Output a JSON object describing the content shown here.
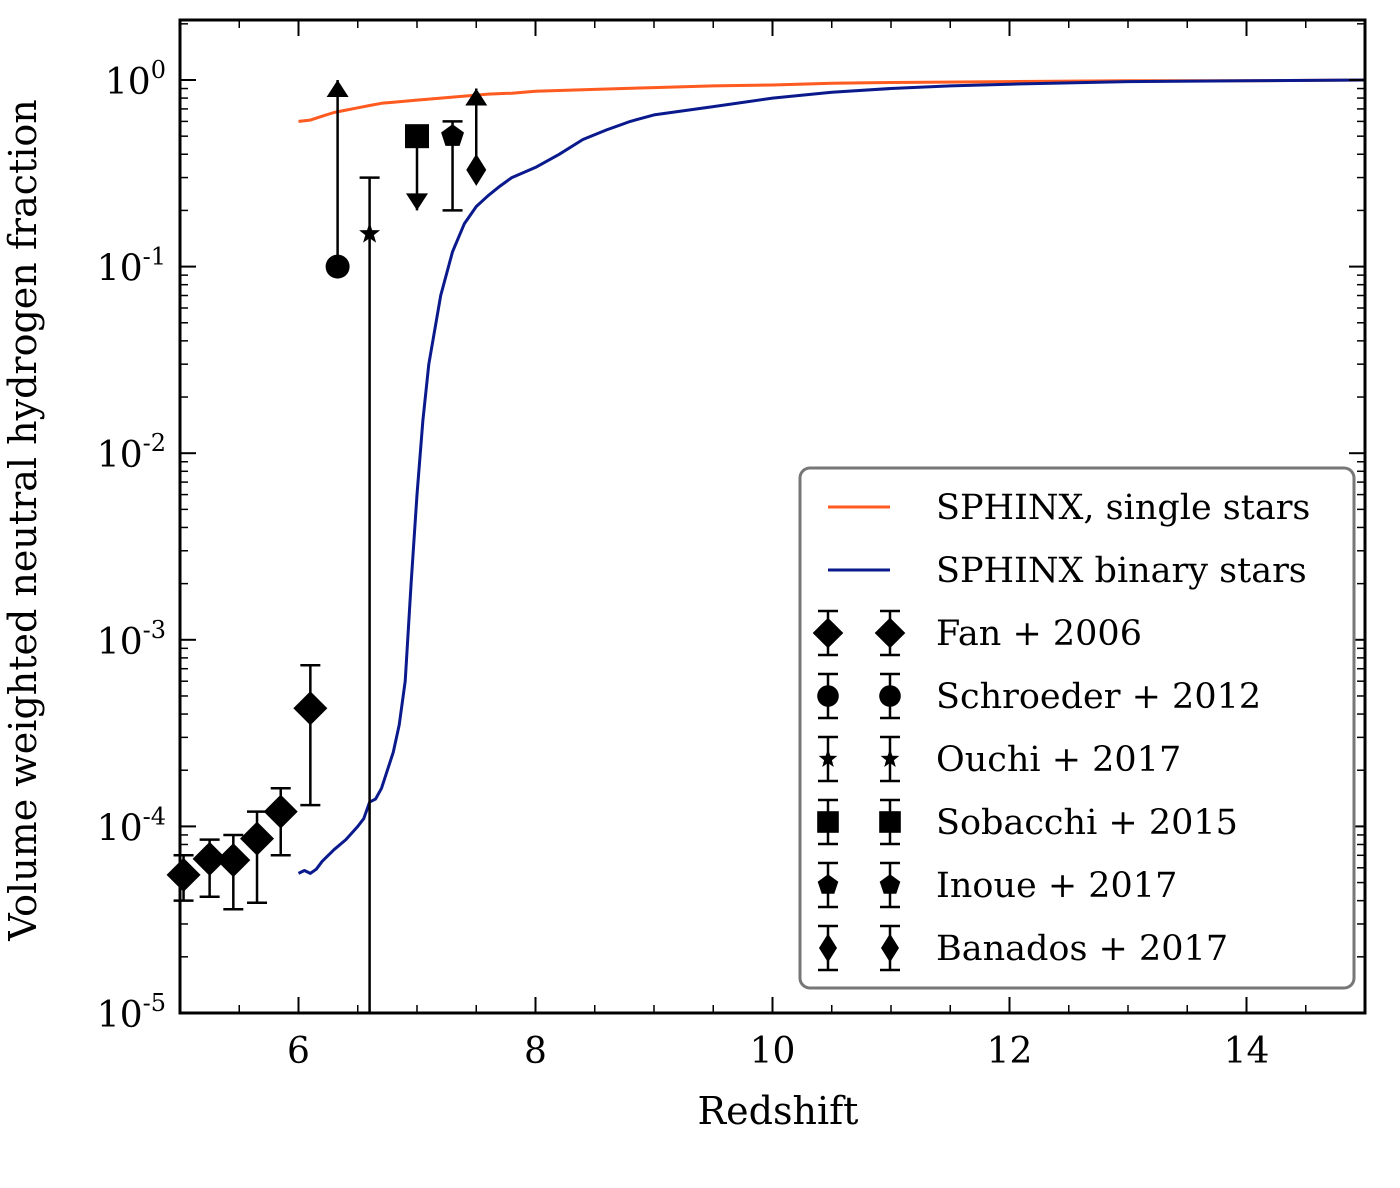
{
  "chart_data": {
    "type": "line",
    "title": "",
    "xlabel": "Redshift",
    "ylabel": "Volume weighted neutral hydrogen fraction",
    "xlim": [
      5,
      15
    ],
    "ylim": [
      1e-05,
      2
    ],
    "y_scale": "log",
    "grid": false,
    "legend_position": "lower-right",
    "x_ticks": [
      6,
      8,
      10,
      12,
      14
    ],
    "x_tick_labels": [
      "6",
      "8",
      "10",
      "12",
      "14"
    ],
    "y_ticks": [
      1e-05,
      0.0001,
      0.001,
      0.01,
      0.1,
      1
    ],
    "y_tick_labels": [
      {
        "base": "10",
        "exp": "-5"
      },
      {
        "base": "10",
        "exp": "-4"
      },
      {
        "base": "10",
        "exp": "-3"
      },
      {
        "base": "10",
        "exp": "-2"
      },
      {
        "base": "10",
        "exp": "-1"
      },
      {
        "base": "10",
        "exp": "0"
      }
    ],
    "series": [
      {
        "name": "SPHINX, single stars",
        "color": "#ff5a1f",
        "x": [
          6.0,
          6.1,
          6.2,
          6.3,
          6.4,
          6.5,
          6.6,
          6.7,
          6.8,
          7.0,
          7.2,
          7.4,
          7.6,
          7.8,
          8.0,
          8.5,
          9.0,
          9.5,
          10.0,
          10.5,
          11.0,
          12.0,
          13.0,
          14.0,
          15.0
        ],
        "y": [
          0.6,
          0.61,
          0.64,
          0.67,
          0.69,
          0.71,
          0.73,
          0.75,
          0.76,
          0.78,
          0.8,
          0.82,
          0.84,
          0.85,
          0.87,
          0.89,
          0.91,
          0.93,
          0.94,
          0.96,
          0.97,
          0.98,
          0.99,
          0.99,
          1.0
        ]
      },
      {
        "name": "SPHINX binary stars",
        "color": "#0a1a8c",
        "x": [
          6.0,
          6.05,
          6.1,
          6.15,
          6.2,
          6.3,
          6.4,
          6.5,
          6.55,
          6.6,
          6.65,
          6.7,
          6.75,
          6.8,
          6.85,
          6.9,
          6.95,
          7.0,
          7.05,
          7.1,
          7.2,
          7.3,
          7.4,
          7.5,
          7.6,
          7.7,
          7.8,
          8.0,
          8.2,
          8.4,
          8.6,
          8.8,
          9.0,
          9.5,
          10.0,
          10.5,
          11.0,
          11.5,
          12.0,
          13.0,
          14.0,
          15.0
        ],
        "y": [
          5.6e-05,
          5.8e-05,
          5.6e-05,
          5.9e-05,
          6.5e-05,
          7.5e-05,
          8.5e-05,
          0.0001,
          0.00011,
          0.000135,
          0.00014,
          0.00016,
          0.0002,
          0.00025,
          0.00035,
          0.0006,
          0.002,
          0.006,
          0.015,
          0.03,
          0.07,
          0.12,
          0.17,
          0.21,
          0.24,
          0.27,
          0.3,
          0.34,
          0.4,
          0.48,
          0.54,
          0.6,
          0.65,
          0.72,
          0.8,
          0.86,
          0.9,
          0.93,
          0.95,
          0.98,
          0.99,
          1.0
        ]
      }
    ],
    "observations": [
      {
        "name": "Fan + 2006",
        "marker": "diamond",
        "points": [
          {
            "x": 5.03,
            "y": 5.5e-05,
            "ylo": 4e-05,
            "yhi": 7e-05
          },
          {
            "x": 5.25,
            "y": 6.7e-05,
            "ylo": 4.2e-05,
            "yhi": 8.5e-05
          },
          {
            "x": 5.45,
            "y": 6.6e-05,
            "ylo": 3.6e-05,
            "yhi": 9e-05
          },
          {
            "x": 5.65,
            "y": 8.6e-05,
            "ylo": 3.9e-05,
            "yhi": 0.00012
          },
          {
            "x": 5.85,
            "y": 0.00012,
            "ylo": 7e-05,
            "yhi": 0.00016
          },
          {
            "x": 6.1,
            "y": 0.00043,
            "ylo": 0.00013,
            "yhi": 0.00073
          }
        ]
      },
      {
        "name": "Schroeder + 2012",
        "marker": "circle",
        "points": [
          {
            "x": 6.33,
            "y": 0.1,
            "ylo": 0.1,
            "yhi": 1.0,
            "lower_limit": true
          }
        ]
      },
      {
        "name": "Ouchi + 2017",
        "marker": "star",
        "points": [
          {
            "x": 6.6,
            "y": 0.15,
            "ylo": 1e-05,
            "yhi": 0.3
          }
        ]
      },
      {
        "name": "Sobacchi + 2015",
        "marker": "square",
        "points": [
          {
            "x": 7.0,
            "y": 0.5,
            "ylo": 0.2,
            "yhi": 0.5,
            "upper_limit": true
          }
        ]
      },
      {
        "name": "Inoue + 2017",
        "marker": "pentagon",
        "points": [
          {
            "x": 7.3,
            "y": 0.5,
            "ylo": 0.2,
            "yhi": 0.6
          }
        ]
      },
      {
        "name": "Banados + 2017",
        "marker": "thin-diamond",
        "points": [
          {
            "x": 7.5,
            "y": 0.33,
            "ylo": 0.33,
            "yhi": 0.9,
            "lower_limit": true
          }
        ]
      }
    ]
  }
}
